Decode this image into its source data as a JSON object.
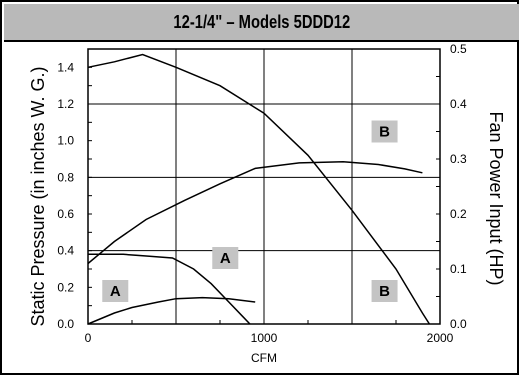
{
  "chart_data": {
    "type": "line",
    "title": "12-1/4\" – Models 5DDD12",
    "xlabel": "CFM",
    "ylabel_left": "Static Pressure (in inches W. G.)",
    "ylabel_right": "Fan Power Input (HP)",
    "xlim": [
      0,
      2000
    ],
    "ylim_left": [
      0,
      1.5
    ],
    "ylim_right": [
      0,
      0.5
    ],
    "x_ticks": [
      "0",
      "1000",
      "2000"
    ],
    "y_left_ticks": [
      "0.0",
      "0.2",
      "0.4",
      "0.6",
      "0.8",
      "1.0",
      "1.2",
      "1.4"
    ],
    "y_right_ticks": [
      "0.0",
      "0.1",
      "0.2",
      "0.3",
      "0.4",
      "0.5"
    ],
    "grid": true,
    "series": [
      {
        "name": "B",
        "kind": "static-pressure",
        "axis": "left",
        "points": [
          [
            0,
            1.4
          ],
          [
            150,
            1.43
          ],
          [
            310,
            1.47
          ],
          [
            500,
            1.4
          ],
          [
            750,
            1.3
          ],
          [
            1000,
            1.15
          ],
          [
            1250,
            0.92
          ],
          [
            1500,
            0.62
          ],
          [
            1750,
            0.3
          ],
          [
            1900,
            0.06
          ],
          [
            1940,
            0.0
          ]
        ]
      },
      {
        "name": "B",
        "kind": "fan-power",
        "axis": "right",
        "points": [
          [
            0,
            0.11
          ],
          [
            150,
            0.15
          ],
          [
            330,
            0.19
          ],
          [
            550,
            0.225
          ],
          [
            750,
            0.255
          ],
          [
            950,
            0.283
          ],
          [
            1200,
            0.293
          ],
          [
            1450,
            0.295
          ],
          [
            1650,
            0.29
          ],
          [
            1800,
            0.282
          ],
          [
            1900,
            0.275
          ]
        ]
      },
      {
        "name": "A",
        "kind": "static-pressure",
        "axis": "left",
        "points": [
          [
            0,
            0.38
          ],
          [
            200,
            0.38
          ],
          [
            350,
            0.37
          ],
          [
            480,
            0.36
          ],
          [
            600,
            0.3
          ],
          [
            700,
            0.22
          ],
          [
            800,
            0.12
          ],
          [
            880,
            0.04
          ],
          [
            920,
            0.0
          ]
        ]
      },
      {
        "name": "A",
        "kind": "fan-power",
        "axis": "right",
        "points": [
          [
            0,
            0.0
          ],
          [
            150,
            0.02
          ],
          [
            250,
            0.03
          ],
          [
            400,
            0.04
          ],
          [
            500,
            0.046
          ],
          [
            650,
            0.048
          ],
          [
            800,
            0.046
          ],
          [
            950,
            0.04
          ]
        ]
      }
    ],
    "labels": [
      {
        "text": "B",
        "x": 1685,
        "y": 1.05
      },
      {
        "text": "B",
        "x": 1685,
        "y": 0.18
      },
      {
        "text": "A",
        "x": 780,
        "y": 0.36
      },
      {
        "text": "A",
        "x": 155,
        "y": 0.18
      }
    ]
  }
}
